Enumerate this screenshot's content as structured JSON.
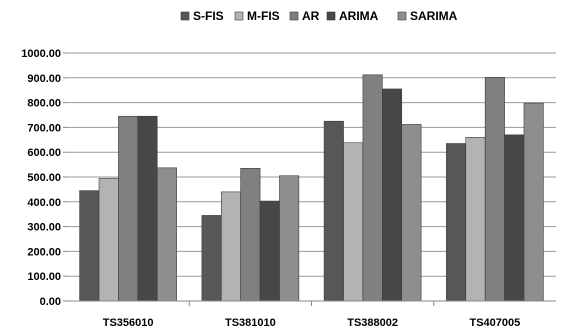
{
  "chart_data": {
    "type": "bar",
    "title": "",
    "xlabel": "",
    "ylabel": "",
    "categories": [
      "TS356010",
      "TS381010",
      "TS388002",
      "TS407005"
    ],
    "series": [
      {
        "name": "S-FIS",
        "color": "#575757",
        "values": [
          445,
          345,
          725,
          635
        ]
      },
      {
        "name": "M-FIS",
        "color": "#b3b3b3",
        "values": [
          495,
          440,
          638,
          660
        ]
      },
      {
        "name": "AR",
        "color": "#808080",
        "values": [
          745,
          535,
          912,
          902
        ]
      },
      {
        "name": "ARIMA",
        "color": "#474747",
        "values": [
          745,
          403,
          855,
          670
        ]
      },
      {
        "name": "SARIMA",
        "color": "#8e8e8e",
        "values": [
          537,
          505,
          712,
          798
        ]
      }
    ],
    "ylim": [
      0,
      1000
    ],
    "yticks": [
      "0.00",
      "100.00",
      "200.00",
      "300.00",
      "400.00",
      "500.00",
      "600.00",
      "700.00",
      "800.00",
      "900.00",
      "1000.00"
    ],
    "grid": true,
    "legend_position": "top-center"
  }
}
